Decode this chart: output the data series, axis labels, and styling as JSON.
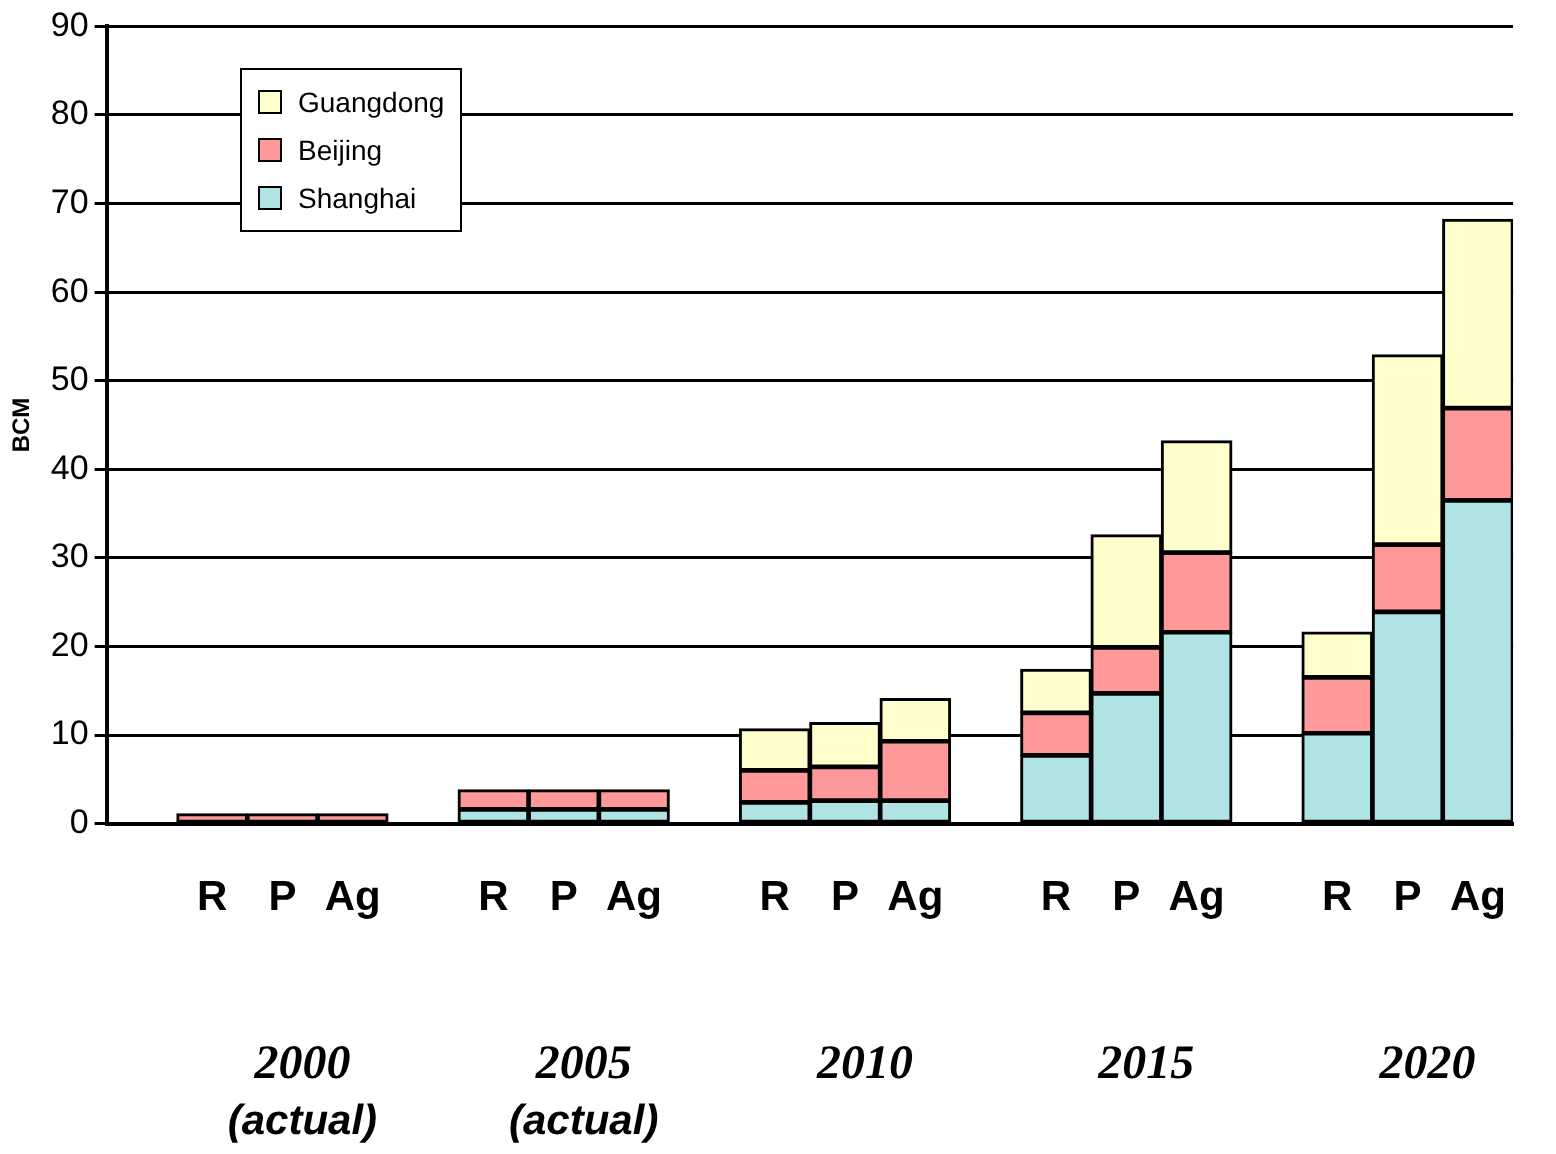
{
  "chart_data": {
    "type": "bar",
    "stacked": true,
    "ylabel": "BCM",
    "ylim": [
      0,
      90
    ],
    "yticks": [
      0,
      10,
      20,
      30,
      40,
      50,
      60,
      70,
      80,
      90
    ],
    "grid": "y",
    "legend": "top left",
    "categories": [
      null,
      "R",
      "P",
      "Ag",
      null,
      "R",
      "P",
      "Ag",
      null,
      "R",
      "P",
      "Ag",
      null,
      "R",
      "P",
      "Ag",
      null,
      "R",
      "P",
      "Ag"
    ],
    "series": [
      {
        "name": "Shanghai",
        "color": "#b0e4e4",
        "values": [
          null,
          0,
          0,
          0,
          null,
          1.6,
          1.6,
          1.6,
          null,
          2.4,
          2.6,
          2.6,
          null,
          7.7,
          14.7,
          21.6,
          null,
          10.2,
          23.9,
          36.5
        ]
      },
      {
        "name": "Beijing",
        "color": "#ff9999",
        "values": [
          null,
          1.1,
          1.1,
          1.1,
          null,
          2.2,
          2.2,
          2.2,
          null,
          3.6,
          3.8,
          6.7,
          null,
          4.8,
          5.2,
          9.0,
          null,
          6.3,
          7.6,
          10.4
        ]
      },
      {
        "name": "Guangdong",
        "color": "#ffffcc",
        "values": [
          null,
          0,
          0,
          0,
          null,
          0,
          0,
          0,
          null,
          4.7,
          5.0,
          4.8,
          null,
          4.9,
          12.7,
          12.6,
          null,
          5.1,
          21.4,
          21.3
        ]
      }
    ],
    "annotations": [
      "2000 (actual)",
      "2005 (actual)",
      "2010",
      "2015",
      "2020"
    ]
  }
}
